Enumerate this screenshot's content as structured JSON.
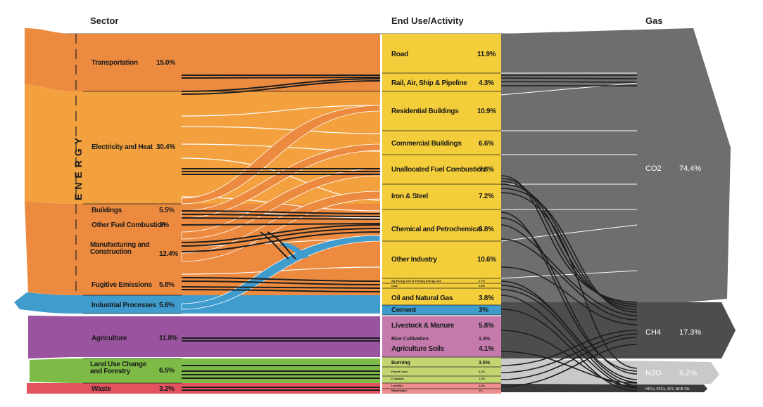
{
  "headers": {
    "sector": "Sector",
    "end_use": "End Use/Activity",
    "gas": "Gas"
  },
  "energy_label": "ENERGY",
  "sectors": [
    {
      "label": "Transportation",
      "value": "15.0%"
    },
    {
      "label": "Electricity and Heat",
      "value": "30.4%"
    },
    {
      "label": "Buildings",
      "value": "5.5%"
    },
    {
      "label": "Other Fuel Combustion",
      "value": "3%"
    },
    {
      "label": "Manufacturing and Construction",
      "value": "12.4%"
    },
    {
      "label": "Fugitive Emissions",
      "value": "5.8%"
    },
    {
      "label": "Industrial Processes",
      "value": "5.6%"
    },
    {
      "label": "Agriculture",
      "value": "11.8%"
    },
    {
      "label": "Land Use Change and Forestry",
      "value": "6.5%"
    },
    {
      "label": "Waste",
      "value": "3.2%"
    }
  ],
  "end_uses": [
    {
      "label": "Road",
      "value": "11.9%"
    },
    {
      "label": "Rail, Air, Ship & Pipeline",
      "value": "4.3%"
    },
    {
      "label": "Residential Buildings",
      "value": "10.9%"
    },
    {
      "label": "Commercial Buildings",
      "value": "6.6%"
    },
    {
      "label": "Unallocated Fuel Combustion",
      "value": "7.8%"
    },
    {
      "label": "Iron & Steel",
      "value": "7.2%"
    },
    {
      "label": "Chemical and Petrochemical",
      "value": "5.8%"
    },
    {
      "label": "Other Industry",
      "value": "10.6%"
    },
    {
      "label": "Ag Energy Use & Fishing Energy Use",
      "value": "1.7%"
    },
    {
      "label": "Coal",
      "value": "1.8%"
    },
    {
      "label": "Oil and Natural Gas",
      "value": "3.8%"
    },
    {
      "label": "Cement",
      "value": "3%"
    },
    {
      "label": "Livestock & Manure",
      "value": "5.8%"
    },
    {
      "label": "Rice Cultivation",
      "value": "1.3%"
    },
    {
      "label": "Agriculture Soils",
      "value": "4.1%"
    },
    {
      "label": "Burning",
      "value": "3.5%"
    },
    {
      "label": "Forest Land",
      "value": "2.2%"
    },
    {
      "label": "Cropland",
      "value": "1.4%"
    },
    {
      "label": "Landfills",
      "value": "1.9%"
    },
    {
      "label": "Wastewater",
      "value": "1%"
    }
  ],
  "gases": [
    {
      "label": "CO2",
      "value": "74.4%"
    },
    {
      "label": "CH4",
      "value": "17.3%"
    },
    {
      "label": "N2O",
      "value": "6.2%"
    },
    {
      "label": "HFCs, PFCs, SF6, NF3",
      "value": "2.1%"
    }
  ],
  "colors": {
    "transport": "#ec8a3f",
    "electricity": "#f2a13e",
    "other_energy": "#ec8a3f",
    "industrial": "#3f9ccd",
    "agriculture": "#9a539e",
    "land_use": "#7dbb46",
    "waste": "#e2525f",
    "end_use_energy": "#f3cd3a",
    "end_use_ag": "#c57aad",
    "end_use_land": "#c3d571",
    "end_use_waste": "#ee8d8d",
    "gas_co2": "#6e6e6e",
    "gas_ch4": "#4d4d4d",
    "gas_n2o": "#c9c9c9",
    "gas_f": "#3a3a3a",
    "flow_dark": "#1e1e1e"
  }
}
